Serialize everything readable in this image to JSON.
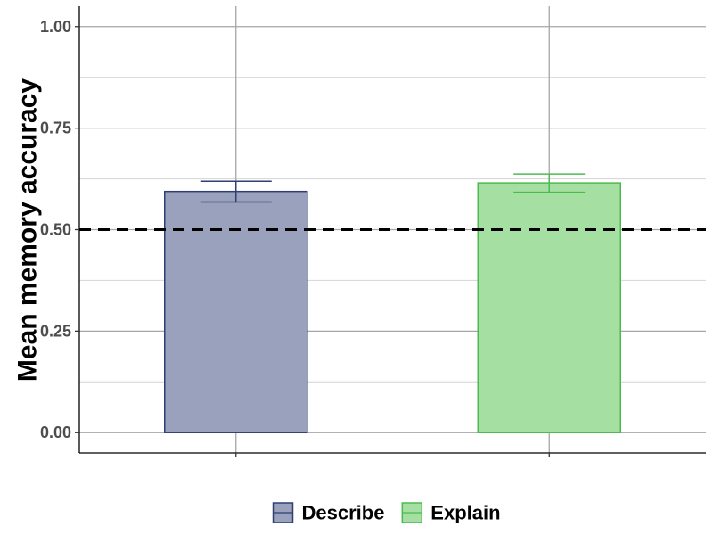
{
  "chart_data": {
    "type": "bar",
    "title": "",
    "xlabel": "",
    "ylabel": "Mean memory accuracy",
    "ylim": [
      -0.05,
      1.05
    ],
    "yticks": [
      0.0,
      0.25,
      0.5,
      0.75,
      1.0
    ],
    "ytick_labels": [
      "0.00",
      "0.25",
      "0.50",
      "0.75",
      "1.00"
    ],
    "grid": true,
    "legend_position": "bottom",
    "reference_line": {
      "y": 0.5,
      "style": "dashed",
      "color": "#000000"
    },
    "series": [
      {
        "name": "Describe",
        "value": 0.594,
        "error_low": 0.568,
        "error_high": 0.619,
        "fill": "#9aa1bc",
        "stroke": "#2f3f73"
      },
      {
        "name": "Explain",
        "value": 0.615,
        "error_low": 0.592,
        "error_high": 0.637,
        "fill": "#a5dfa2",
        "stroke": "#4cbb4f"
      }
    ]
  }
}
